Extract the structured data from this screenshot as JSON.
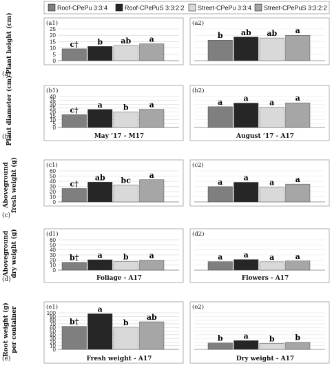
{
  "legend": [
    {
      "label": "Roof-CPePu 3:3:4",
      "color": "#7f7f7f"
    },
    {
      "label": "Roof-CPePuS 3:3:2:2",
      "color": "#262626"
    },
    {
      "label": "Street-CPePu 3:3:4",
      "color": "#d9d9d9"
    },
    {
      "label": "Street-CPePuS 3:3:2:2",
      "color": "#a6a6a6"
    }
  ],
  "rows": [
    {
      "row_label": "(a)",
      "ylabel_lines": [
        "Plant height (cm)"
      ]
    },
    {
      "row_label": "(b)",
      "ylabel_lines": [
        "Plant diameter (cm)"
      ]
    },
    {
      "row_label": "(c)",
      "ylabel_lines": [
        "Aboveground",
        "fresh weight (g)"
      ]
    },
    {
      "row_label": "(d)",
      "ylabel_lines": [
        "Aboveground",
        "dry weight (g)"
      ]
    },
    {
      "row_label": "(e)",
      "ylabel_lines": [
        "Root weight (g)",
        "per container"
      ]
    }
  ],
  "chart_data": [
    {
      "type": "bar",
      "panel": "(a1)",
      "ylim": [
        0,
        25
      ],
      "yticks": [
        0,
        5,
        10,
        15,
        20,
        25
      ],
      "values": [
        9.3,
        11.2,
        12.0,
        13.3
      ],
      "letters": [
        "c†",
        "b",
        "ab",
        "a"
      ],
      "xlabel": ""
    },
    {
      "type": "bar",
      "panel": "(a2)",
      "ylim": [
        0,
        25
      ],
      "yticks": [],
      "values": [
        16.2,
        18.6,
        17.9,
        20.0
      ],
      "letters": [
        "b",
        "ab",
        "ab",
        "a"
      ],
      "xlabel": ""
    },
    {
      "type": "bar",
      "panel": "(b1)",
      "ylim": [
        0,
        40
      ],
      "yticks": [
        0,
        5,
        10,
        15,
        20,
        25,
        30,
        35,
        40
      ],
      "values": [
        16.5,
        23.3,
        20.0,
        23.5
      ],
      "letters": [
        "c†",
        "a",
        "b",
        "a"
      ],
      "xlabel": "May ’17 - M17"
    },
    {
      "type": "bar",
      "panel": "(b2)",
      "ylim": [
        0,
        40
      ],
      "yticks": [],
      "values": [
        26.8,
        31.5,
        26.2,
        31.8
      ],
      "letters": [
        "a",
        "a",
        "a",
        "a"
      ],
      "xlabel": "August ’17 - A17"
    },
    {
      "type": "bar",
      "panel": "(c1)",
      "ylim": [
        0,
        60
      ],
      "yticks": [
        0,
        10,
        20,
        30,
        40,
        50,
        60
      ],
      "values": [
        26.0,
        38.3,
        33.0,
        43.0
      ],
      "letters": [
        "c†",
        "ab",
        "bc",
        "a"
      ],
      "xlabel": ""
    },
    {
      "type": "bar",
      "panel": "(c2)",
      "ylim": [
        0,
        60
      ],
      "yticks": [],
      "values": [
        29.5,
        38.0,
        28.5,
        34.5
      ],
      "letters": [
        "a",
        "a",
        "a",
        "a"
      ],
      "xlabel": ""
    },
    {
      "type": "bar",
      "panel": "(d1)",
      "ylim": [
        0,
        60
      ],
      "yticks": [
        0,
        10,
        20,
        30,
        40,
        50,
        60
      ],
      "values": [
        15.5,
        20.5,
        17.0,
        19.5
      ],
      "letters": [
        "b†",
        "a",
        "b",
        "a"
      ],
      "xlabel": "Foliage - A17"
    },
    {
      "type": "bar",
      "panel": "(d2)",
      "ylim": [
        0,
        60
      ],
      "yticks": [],
      "values": [
        16.8,
        21.0,
        16.5,
        18.0
      ],
      "letters": [
        "a",
        "a",
        "a",
        "a"
      ],
      "xlabel": "Flowers - A17"
    },
    {
      "type": "bar",
      "panel": "(e1)",
      "ylim": [
        0,
        100
      ],
      "yticks": [
        0,
        10,
        20,
        30,
        40,
        50,
        60,
        70,
        80,
        90,
        100
      ],
      "values": [
        63.0,
        97.5,
        60.5,
        75.5
      ],
      "letters": [
        "b†",
        "a",
        "b",
        "ab"
      ],
      "xlabel": "Fresh weight - A17"
    },
    {
      "type": "bar",
      "panel": "(e2)",
      "ylim": [
        0,
        100
      ],
      "yticks": [],
      "values": [
        17.5,
        24.0,
        16.5,
        19.5
      ],
      "letters": [
        "b",
        "a",
        "b",
        "b"
      ],
      "xlabel": "Dry weight - A17"
    }
  ]
}
